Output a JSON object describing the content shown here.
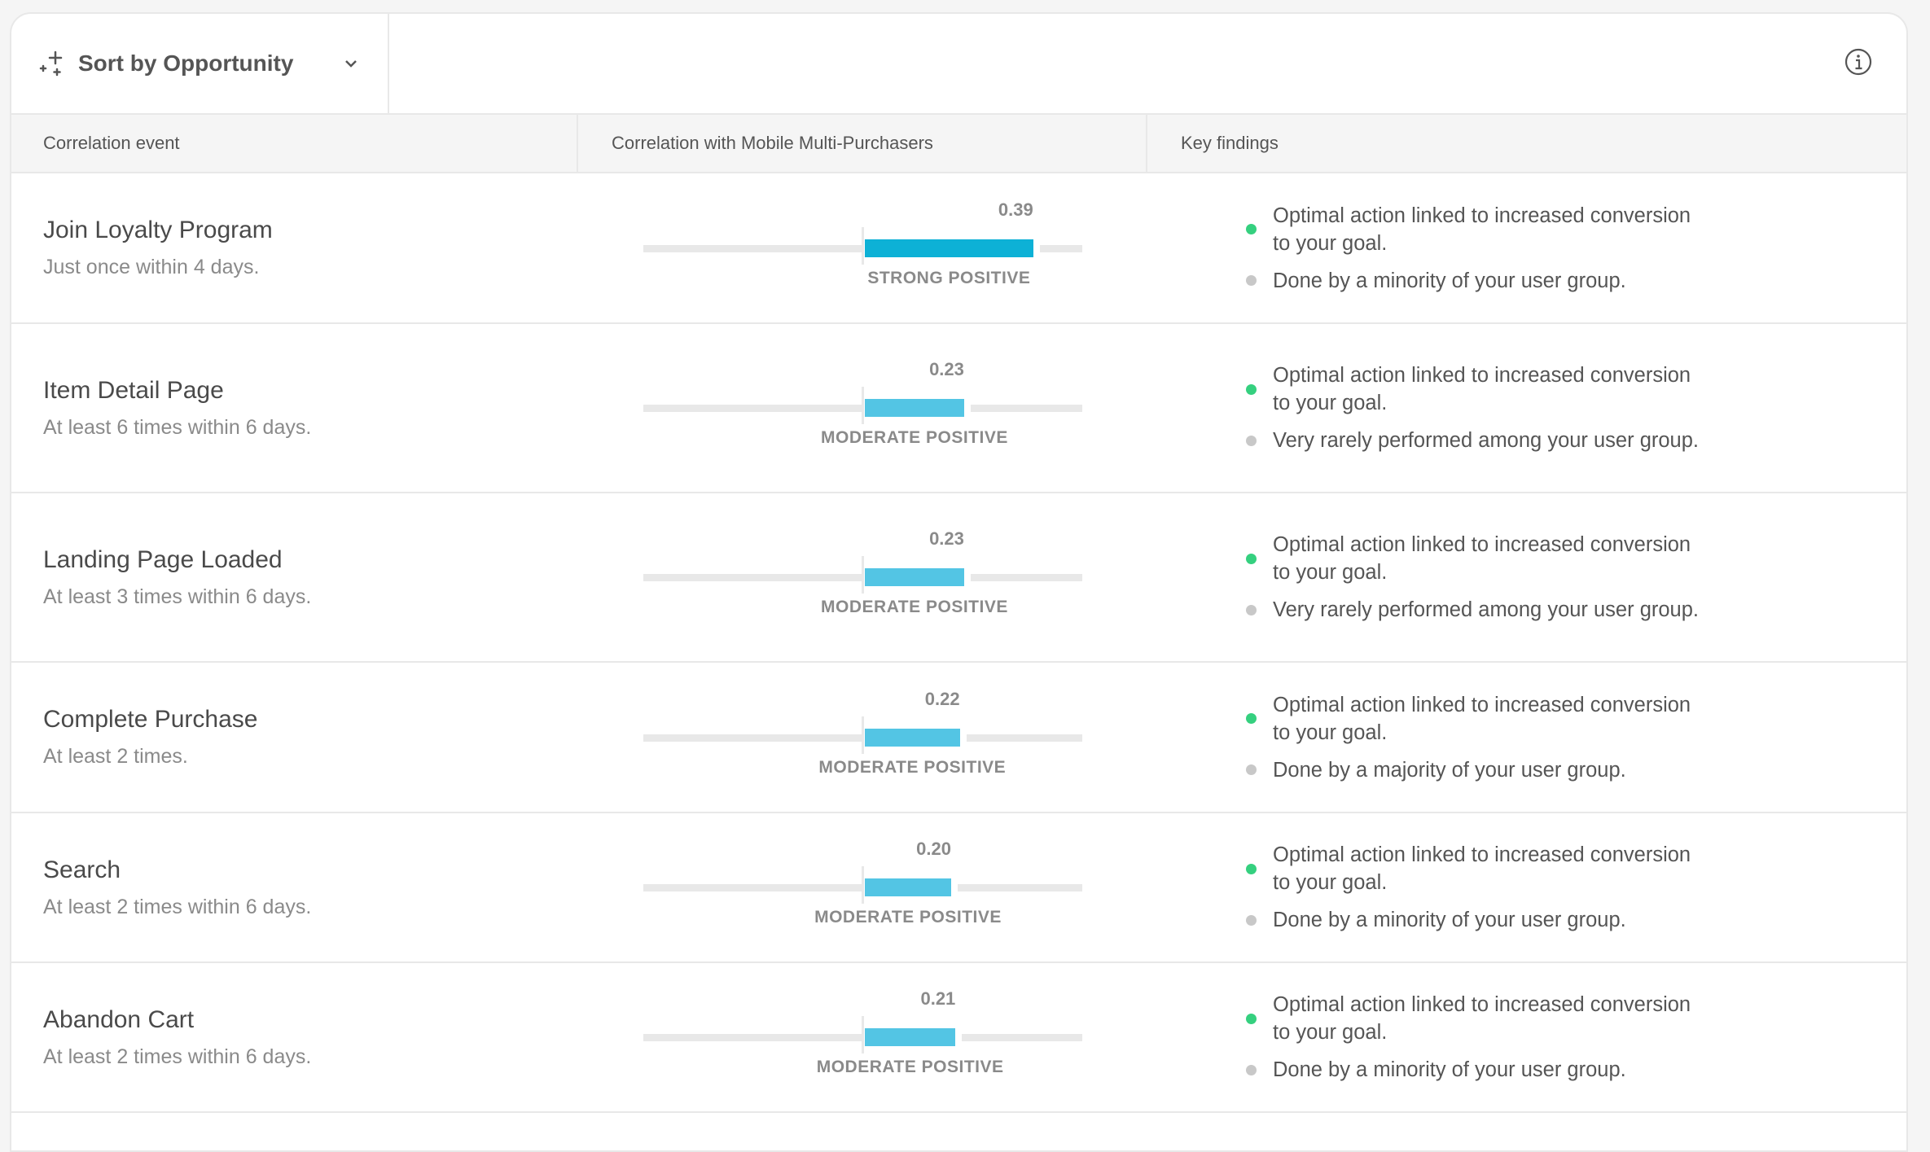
{
  "toolbar": {
    "sort_label": "Sort by Opportunity",
    "sort_icon": "sparkle-icon",
    "info_icon": "info-icon"
  },
  "colors": {
    "strong": "#0db1d6",
    "moderate": "#53c5e4",
    "positive_dot": "#35d07f",
    "neutral_dot": "#c8c8c8"
  },
  "columns": [
    "Correlation event",
    "Correlation with Mobile Multi-Purchasers",
    "Key findings"
  ],
  "chart_data": {
    "type": "bar",
    "orientation": "horizontal",
    "xlim": [
      -0.5,
      0.5
    ],
    "categories": [
      "Join Loyalty Program",
      "Item Detail Page",
      "Landing Page Loaded",
      "Complete Purchase",
      "Search",
      "Abandon Cart"
    ],
    "values": [
      0.39,
      0.23,
      0.23,
      0.22,
      0.2,
      0.21
    ]
  },
  "rows": [
    {
      "title": "Join Loyalty Program",
      "subtitle": "Just once within 4 days.",
      "value": 0.39,
      "value_label": "0.39",
      "strength": "STRONG POSITIVE",
      "level": "strong",
      "findings": [
        {
          "type": "positive",
          "text": "Optimal action linked to increased conversion to your goal."
        },
        {
          "type": "neutral",
          "text": "Done by a minority of your user group."
        }
      ]
    },
    {
      "title": "Item Detail Page",
      "subtitle": "At least 6 times within 6 days.",
      "value": 0.23,
      "value_label": "0.23",
      "strength": "MODERATE POSITIVE",
      "level": "moderate",
      "findings": [
        {
          "type": "positive",
          "text": "Optimal action linked to increased conversion to your goal."
        },
        {
          "type": "neutral",
          "text": "Very rarely performed among your user group."
        }
      ]
    },
    {
      "title": "Landing Page Loaded",
      "subtitle": "At least 3 times within 6 days.",
      "value": 0.23,
      "value_label": "0.23",
      "strength": "MODERATE POSITIVE",
      "level": "moderate",
      "findings": [
        {
          "type": "positive",
          "text": "Optimal action linked to increased conversion to your goal."
        },
        {
          "type": "neutral",
          "text": "Very rarely performed among your user group."
        }
      ]
    },
    {
      "title": "Complete Purchase",
      "subtitle": "At least 2 times.",
      "value": 0.22,
      "value_label": "0.22",
      "strength": "MODERATE POSITIVE",
      "level": "moderate",
      "findings": [
        {
          "type": "positive",
          "text": "Optimal action linked to increased conversion to your goal."
        },
        {
          "type": "neutral",
          "text": "Done by a majority of your user group."
        }
      ]
    },
    {
      "title": "Search",
      "subtitle": "At least 2 times within 6 days.",
      "value": 0.2,
      "value_label": "0.20",
      "strength": "MODERATE POSITIVE",
      "level": "moderate",
      "findings": [
        {
          "type": "positive",
          "text": "Optimal action linked to increased conversion to your goal."
        },
        {
          "type": "neutral",
          "text": "Done by a minority of your user group."
        }
      ]
    },
    {
      "title": "Abandon Cart",
      "subtitle": "At least 2 times within 6 days.",
      "value": 0.21,
      "value_label": "0.21",
      "strength": "MODERATE POSITIVE",
      "level": "moderate",
      "findings": [
        {
          "type": "positive",
          "text": "Optimal action linked to increased conversion to your goal."
        },
        {
          "type": "neutral",
          "text": "Done by a minority of your user group."
        }
      ]
    }
  ]
}
